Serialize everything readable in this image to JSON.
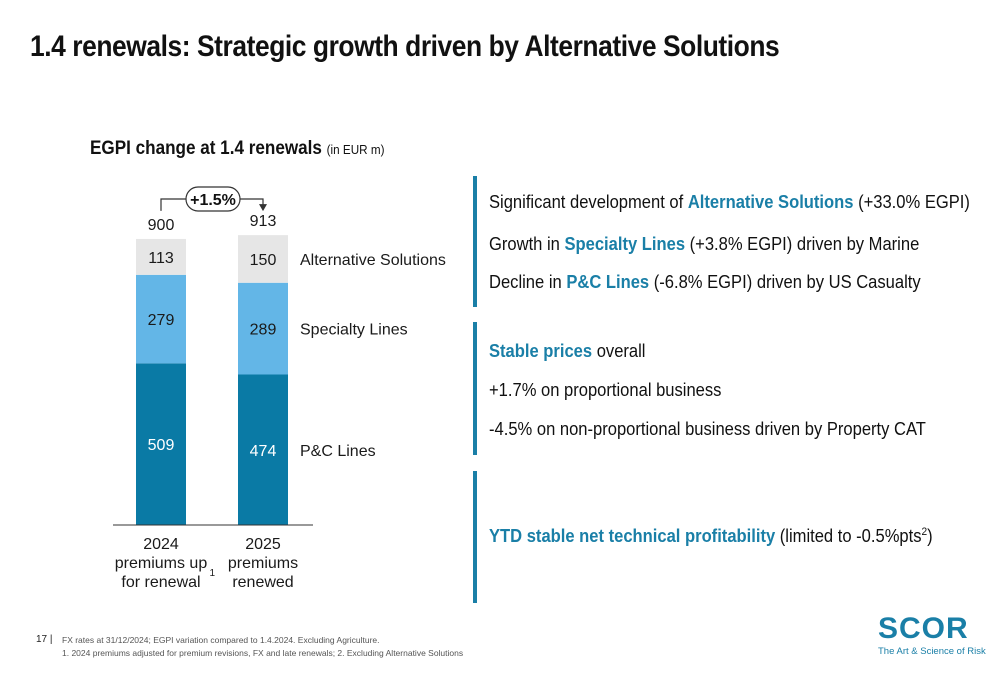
{
  "title": "1.4 renewals: Strategic growth driven by Alternative Solutions",
  "chart_title": "EGPI change at 1.4 renewals",
  "chart_unit": "(in EUR m)",
  "colors": {
    "accent": "#1a7fa7",
    "pc_lines": "#0a7aa5",
    "specialty_lines": "#63b6e7",
    "alternative_solutions": "#e6e6e6"
  },
  "chart_data": {
    "type": "bar",
    "stacked": true,
    "title": "EGPI change at 1.4 renewals",
    "unit": "(in EUR m)",
    "categories": [
      "2024 premiums up for renewal",
      "2025 premiums renewed"
    ],
    "category_labels": [
      [
        "2024",
        "premiums up",
        "for renewal"
      ],
      [
        "2025",
        "premiums",
        "renewed"
      ]
    ],
    "category_footnotes": [
      "1",
      ""
    ],
    "series": [
      {
        "name": "P&C Lines",
        "values": [
          509,
          474
        ]
      },
      {
        "name": "Specialty Lines",
        "values": [
          279,
          289
        ]
      },
      {
        "name": "Alternative Solutions",
        "values": [
          113,
          150
        ]
      }
    ],
    "totals": [
      900,
      913
    ],
    "change_label": "+1.5%",
    "ylim": [
      0,
      1000
    ]
  },
  "panels": [
    {
      "lines": [
        [
          "Significant development of ",
          "Alternative Solutions",
          " (+33.0% EGPI)"
        ],
        [
          "Growth in ",
          "Specialty Lines",
          " (+3.8% EGPI) driven by Marine"
        ],
        [
          "Decline in ",
          "P&C Lines",
          " (-6.8% EGPI) driven by US Casualty"
        ]
      ]
    },
    {
      "lines": [
        [
          "",
          "Stable prices",
          " overall"
        ],
        [
          "",
          "",
          "+1.7% on proportional business"
        ],
        [
          "",
          "",
          "-4.5% on non-proportional business driven by Property CAT"
        ]
      ]
    },
    {
      "lines": [
        [
          "",
          "YTD stable net technical profitability",
          " (limited to -0.5%pts"
        ]
      ],
      "sup": "2",
      "close": ")"
    }
  ],
  "footer": {
    "page": "17",
    "separator": "|",
    "line1": "FX rates at 31/12/2024; EGPI variation compared to 1.4.2024. Excluding Agriculture.",
    "line2": "1. 2024 premiums adjusted for premium revisions, FX and late renewals; 2. Excluding Alternative Solutions"
  },
  "logo": {
    "word": "SCOR",
    "tagline": "The Art & Science of Risk"
  }
}
